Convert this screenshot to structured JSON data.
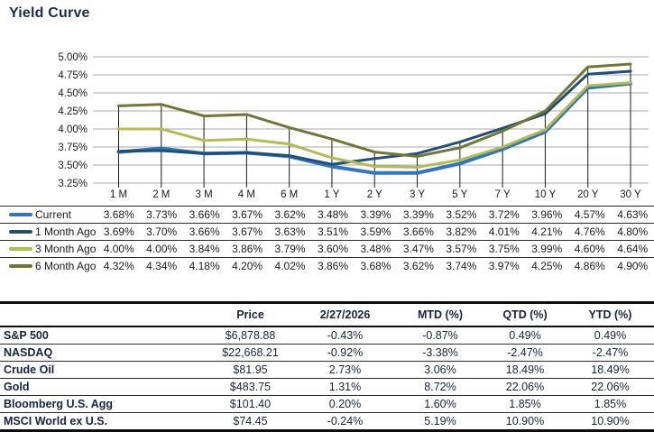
{
  "title": "Yield Curve",
  "chart_data": {
    "type": "line",
    "categories": [
      "1 M",
      "2 M",
      "3 M",
      "4 M",
      "6 M",
      "1 Y",
      "2 Y",
      "3 Y",
      "5 Y",
      "7 Y",
      "10 Y",
      "20 Y",
      "30 Y"
    ],
    "series": [
      {
        "name": "Current",
        "color": "#2e75c3",
        "stroke_width": 4,
        "values": [
          3.68,
          3.73,
          3.66,
          3.67,
          3.62,
          3.48,
          3.39,
          3.39,
          3.52,
          3.72,
          3.96,
          4.57,
          4.63
        ]
      },
      {
        "name": "1 Month Ago",
        "color": "#1f4e79",
        "stroke_width": 3,
        "values": [
          3.69,
          3.7,
          3.66,
          3.67,
          3.63,
          3.51,
          3.59,
          3.66,
          3.82,
          4.01,
          4.21,
          4.76,
          4.8
        ]
      },
      {
        "name": "3 Month Ago",
        "color": "#b3bc4d",
        "stroke_width": 3,
        "values": [
          4.0,
          4.0,
          3.84,
          3.86,
          3.79,
          3.6,
          3.48,
          3.47,
          3.57,
          3.75,
          3.99,
          4.6,
          4.64
        ]
      },
      {
        "name": "6 Month Ago",
        "color": "#737632",
        "stroke_width": 3,
        "values": [
          4.32,
          4.34,
          4.18,
          4.2,
          4.02,
          3.86,
          3.68,
          3.62,
          3.74,
          3.97,
          4.25,
          4.86,
          4.9
        ]
      }
    ],
    "title": "Yield Curve",
    "xlabel": "",
    "ylabel": "",
    "ylim": [
      3.25,
      5.0
    ],
    "ytick_step": 0.25,
    "ytick_labels": [
      "5.00%",
      "4.75%",
      "4.50%",
      "4.25%",
      "4.00%",
      "3.75%",
      "3.50%",
      "3.25%"
    ],
    "grid": true,
    "drop_lines": true,
    "legend_position": "left-table",
    "colors": {
      "grid": "#a9a9a9",
      "axis_text": "#1a1a1a",
      "drop_line": "#1a1a1a"
    }
  },
  "market_table": {
    "headers": [
      "",
      "Price",
      "2/27/2026",
      "MTD (%)",
      "QTD (%)",
      "YTD (%)"
    ],
    "rows": [
      [
        "S&P 500",
        "$6,878.88",
        "-0.43%",
        "-0.87%",
        "0.49%",
        "0.49%"
      ],
      [
        "NASDAQ",
        "$22,668.21",
        "-0.92%",
        "-3.38%",
        "-2.47%",
        "-2.47%"
      ],
      [
        "Crude Oil",
        "$81.95",
        "2.73%",
        "3.06%",
        "18.49%",
        "18.49%"
      ],
      [
        "Gold",
        "$483.75",
        "1.31%",
        "8.72%",
        "22.06%",
        "22.06%"
      ],
      [
        "Bloomberg U.S. Agg",
        "$101.40",
        "0.20%",
        "1.60%",
        "1.85%",
        "1.85%"
      ],
      [
        "MSCI World ex U.S.",
        "$74.45",
        "-0.24%",
        "5.19%",
        "10.90%",
        "10.90%"
      ]
    ]
  }
}
